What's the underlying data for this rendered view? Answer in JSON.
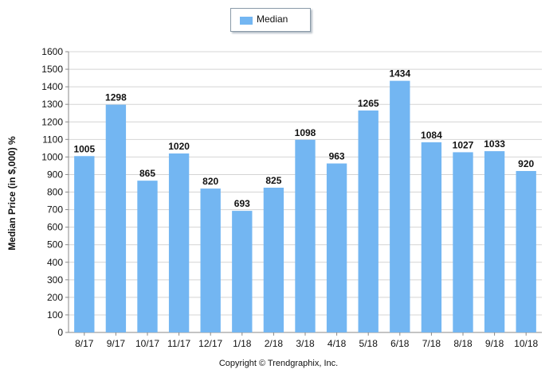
{
  "legend": {
    "label": "Median"
  },
  "copyright": "Copyright © Trendgraphix, Inc.",
  "colors": {
    "bar": "#73b6f2",
    "grid": "#d4d4d4",
    "axis": "#888888"
  },
  "chart_data": {
    "type": "bar",
    "categories": [
      "8/17",
      "9/17",
      "10/17",
      "11/17",
      "12/17",
      "1/18",
      "2/18",
      "3/18",
      "4/18",
      "5/18",
      "6/18",
      "7/18",
      "8/18",
      "9/18",
      "10/18"
    ],
    "series": [
      {
        "name": "Median",
        "values": [
          1005,
          1298,
          865,
          1020,
          820,
          693,
          825,
          1098,
          963,
          1265,
          1434,
          1084,
          1027,
          1033,
          920
        ]
      }
    ],
    "title": "",
    "xlabel": "",
    "ylabel": "Median Price (in $,000) %",
    "ylim": [
      0,
      1600
    ],
    "yticks": [
      0,
      100,
      200,
      300,
      400,
      500,
      600,
      700,
      800,
      900,
      1000,
      1100,
      1200,
      1300,
      1400,
      1500,
      1600
    ],
    "grid": true,
    "legend_position": "top-center",
    "data_labels": true
  }
}
